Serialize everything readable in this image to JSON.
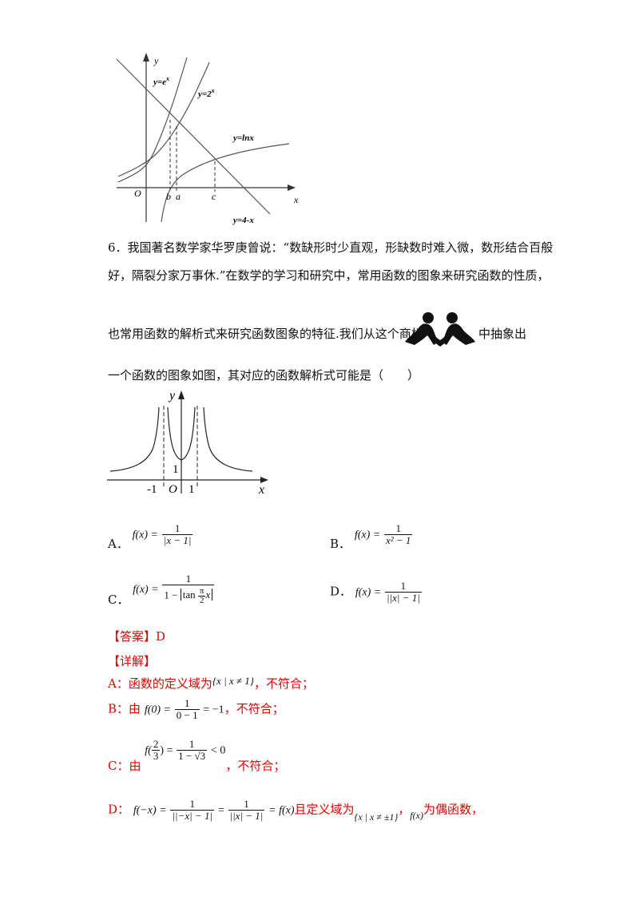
{
  "fig1": {
    "y_axis": "y",
    "x_axis": "x",
    "origin": "O",
    "label_ex": "y=e",
    "label_ex_sup": "x",
    "label_2x": "y=2",
    "label_2x_sup": "x",
    "label_lnx": "y=lnx",
    "label_4mx": "y=4-x",
    "tick_b": "b",
    "tick_a": "a",
    "tick_c": "c"
  },
  "question": {
    "line1": "6．我国著名数学家华罗庚曾说：“数缺形时少直观，形缺数时难入微，数形结合百般",
    "line2": "好，隔裂分家万事休.”在数学的学习和研究中，常用函数的图象来研究函数的性质，",
    "line3a": "也常用函数的解析式来研究函数图象的特征.我们从这个商标",
    "line3b": "中抽象出",
    "line4": "一个函数的图象如图，其对应的函数解析式可能是（　　）"
  },
  "fig2": {
    "y_axis": "y",
    "x_axis": "x",
    "origin": "O",
    "tick_neg1": "-1",
    "tick_1": "1",
    "label_1": "1"
  },
  "options": {
    "A_label": "A．",
    "A_lhs": "f(x) =",
    "A_num": "1",
    "A_den": "|x − 1|",
    "B_label": "B．",
    "B_lhs": "f(x) =",
    "B_num": "1",
    "B_den": "x² − 1",
    "C_label": "C．",
    "C_lhs": "f(x) =",
    "C_num": "1",
    "C_den_pre": "1 − ",
    "C_tan": "tan",
    "C_pi": "π",
    "C_two": "2",
    "C_x": "x",
    "D_label": "D．",
    "D_lhs": "f(x) =",
    "D_num": "1",
    "D_den": "||x| − 1|"
  },
  "answer": {
    "tag": "【答案】D",
    "detail": "【详解】"
  },
  "solution": {
    "A_pre": "A：函数的定义域为",
    "A_set": "{x | x ≠ 1}",
    "A_post": "，不符合；",
    "B_pre": "B：由",
    "B_lhs": "f(0) =",
    "B_num": "1",
    "B_den": "0 − 1",
    "B_rhs": "= −1",
    "B_post": "，不符合；",
    "C_pre": "C：由",
    "C_lhs": "f(",
    "C_fnum": "2",
    "C_fden": "3",
    "C_mid": ") =",
    "C_num": "1",
    "C_den": "1 − √3",
    "C_rhs": "< 0",
    "C_post": "，不符合；",
    "D_pre": "D：",
    "D_lhs": "f(−x) =",
    "D_num1": "1",
    "D_den1": "||−x| − 1|",
    "D_eq": "=",
    "D_num2": "1",
    "D_den2": "||x| − 1|",
    "D_rhs": "= f(x)",
    "D_mid": "且定义域为",
    "D_set": "{x | x ≠ ±1}",
    "D_comma": "，",
    "D_fx": "f(x)",
    "D_post": "为偶函数，"
  },
  "colors": {
    "text": "#111111",
    "answer_red": "#e60000"
  }
}
